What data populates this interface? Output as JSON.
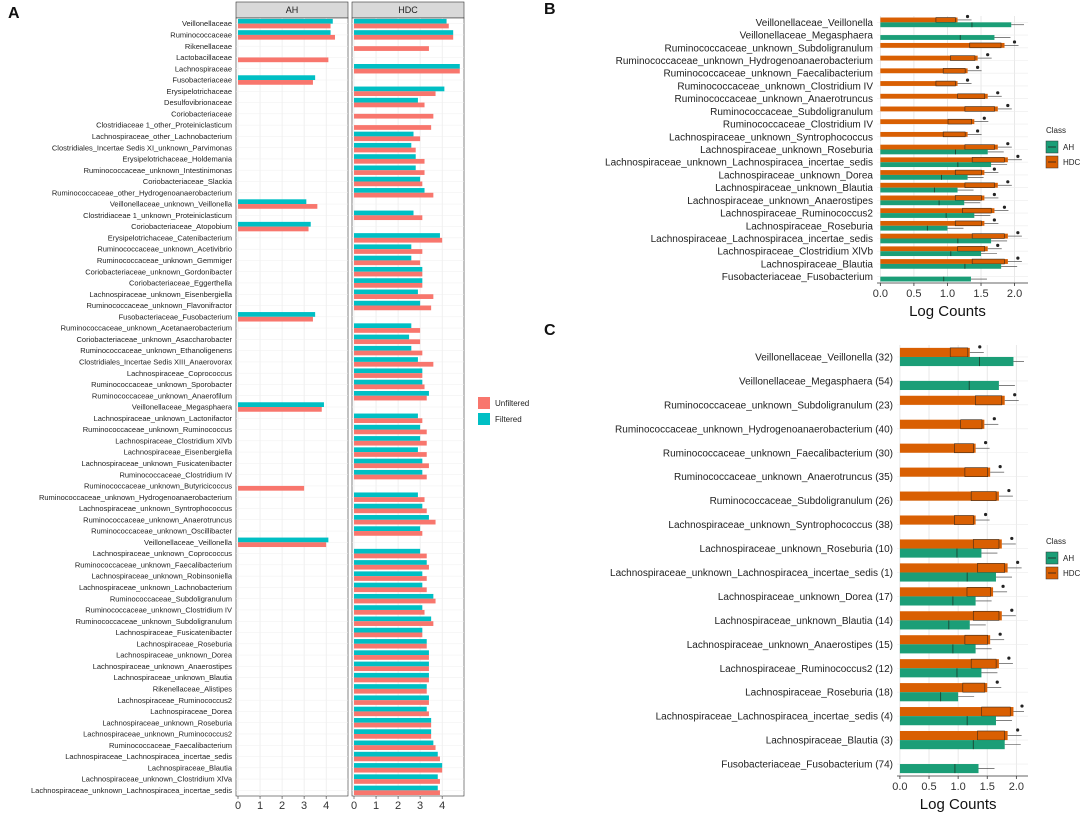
{
  "colors": {
    "unfiltered": "#F8766D",
    "filtered": "#00BFC4",
    "AH": "#1B9E77",
    "HDC": "#D95F02",
    "highlight_blue": "#1f1fa8",
    "highlight_green": "#2e7d32"
  },
  "chart_data": [
    {
      "panel": "A",
      "type": "bar",
      "facets": [
        "AH",
        "HDC"
      ],
      "xlim": [
        0,
        4.9
      ],
      "xticks": [
        "0",
        "1",
        "2",
        "3",
        "4"
      ],
      "legend": {
        "title": "",
        "entries": [
          "Unfiltered",
          "Filtered"
        ],
        "position": "right"
      },
      "highlighted": [
        "Lactobacillaceae",
        "Coriobacteriaceae",
        "Clostridiaceae 1_other_Proteiniclasticum",
        "Ruminococcaceae_unknown_Butyricicoccus"
      ],
      "categories": [
        "Veillonellaceae",
        "Ruminococcaceae",
        "Rikenellaceae",
        "Lactobacillaceae",
        "Lachnospiraceae",
        "Fusobacteriaceae",
        "Erysipelotrichaceae",
        "Desulfovibrionaceae",
        "Coriobacteriaceae",
        "Clostridiaceae 1_other_Proteiniclasticum",
        "Lachnospiraceae_other_Lachnobacterium",
        "Clostridiales_Incertae Sedis XI_unknown_Parvimonas",
        "Erysipelotrichaceae_Holdemania",
        "Ruminococcaceae_unknown_Intestinimonas",
        "Coriobacteriaceae_Slackia",
        "Ruminococcaceae_other_Hydrogenoanaerobacterium",
        "Veillonellaceae_unknown_Veillonella",
        "Clostridiaceae 1_unknown_Proteiniclasticum",
        "Coriobacteriaceae_Atopobium",
        "Erysipelotrichaceae_Catenibacterium",
        "Ruminococcaceae_unknown_Acetivibrio",
        "Ruminococcaceae_unknown_Gemmiger",
        "Coriobacteriaceae_unknown_Gordonibacter",
        "Coriobacteriaceae_Eggerthella",
        "Lachnospiraceae_unknown_Eisenbergiella",
        "Ruminococcaceae_unknown_Flavonifractor",
        "Fusobacteriaceae_Fusobacterium",
        "Ruminococcaceae_unknown_Acetanaerobacterium",
        "Coriobacteriaceae_unknown_Asaccharobacter",
        "Ruminococcaceae_unknown_Ethanoligenens",
        "Clostridiales_Incertae Sedis XIII_Anaerovorax",
        "Lachnospiraceae_Coprococcus",
        "Ruminococcaceae_unknown_Sporobacter",
        "Ruminococcaceae_unknown_Anaerofilum",
        "Veillonellaceae_Megasphaera",
        "Lachnospiraceae_unknown_Lactonifactor",
        "Ruminococcaceae_unknown_Ruminococcus",
        "Lachnospiraceae_Clostridium XlVb",
        "Lachnospiraceae_Eisenbergiella",
        "Lachnospiraceae_unknown_Fusicatenibacter",
        "Ruminococcaceae_Clostridium IV",
        "Ruminococcaceae_unknown_Butyricicoccus",
        "Ruminococcaceae_unknown_Hydrogenoanaerobacterium",
        "Lachnospiraceae_unknown_Syntrophococcus",
        "Ruminococcaceae_unknown_Anaerotruncus",
        "Ruminococcaceae_unknown_Oscillibacter",
        "Veillonellaceae_Veillonella",
        "Lachnospiraceae_unknown_Coprococcus",
        "Ruminococcaceae_unknown_Faecalibacterium",
        "Lachnospiraceae_unknown_Robinsoniella",
        "Lachnospiraceae_unknown_Lachnobacterium",
        "Ruminococcaceae_Subdoligranulum",
        "Ruminococcaceae_unknown_Clostridium IV",
        "Ruminococcaceae_unknown_Subdoligranulum",
        "Lachnospiraceae_Fusicatenibacter",
        "Lachnospiraceae_Roseburia",
        "Lachnospiraceae_unknown_Dorea",
        "Lachnospiraceae_unknown_Anaerostipes",
        "Lachnospiraceae_unknown_Blautia",
        "Rikenellaceae_Alistipes",
        "Lachnospiraceae_Ruminococcus2",
        "Lachnospiraceae_Dorea",
        "Lachnospiraceae_unknown_Roseburia",
        "Lachnospiraceae_unknown_Ruminococcus2",
        "Ruminococcaceae_Faecalibacterium",
        "Lachnospiraceae_Lachnospiracea_incertae_sedis",
        "Lachnospiraceae_Blautia",
        "Lachnospiraceae_unknown_Clostridium XlVa",
        "Lachnospiraceae_unknown_Lachnospiracea_incertae_sedis"
      ],
      "series": [
        {
          "name": "AH_Unfiltered",
          "values": [
            4.2,
            4.4,
            0,
            4.1,
            0,
            3.4,
            0,
            0,
            0,
            0,
            0,
            0,
            0,
            0,
            0,
            0,
            3.6,
            0,
            3.2,
            0,
            0,
            0,
            0,
            0,
            0,
            0,
            3.4,
            0,
            0,
            0,
            0,
            0,
            0,
            0,
            3.8,
            0,
            0,
            0,
            0,
            0,
            0,
            3.0,
            0,
            0,
            0,
            0,
            4.0,
            0,
            0,
            0,
            0,
            0,
            0,
            0,
            0,
            0,
            0,
            0,
            0,
            0,
            0,
            0,
            0,
            0,
            0,
            0,
            0,
            0,
            0
          ]
        },
        {
          "name": "AH_Filtered",
          "values": [
            4.3,
            4.2,
            0,
            0,
            0,
            3.5,
            0,
            0,
            0,
            0,
            0,
            0,
            0,
            0,
            0,
            0,
            3.1,
            0,
            3.3,
            0,
            0,
            0,
            0,
            0,
            0,
            0,
            3.5,
            0,
            0,
            0,
            0,
            0,
            0,
            0,
            3.9,
            0,
            0,
            0,
            0,
            0,
            0,
            0,
            0,
            0,
            0,
            0,
            4.1,
            0,
            0,
            0,
            0,
            0,
            0,
            0,
            0,
            0,
            0,
            0,
            0,
            0,
            0,
            0,
            0,
            0,
            0,
            0,
            0,
            0,
            0
          ]
        },
        {
          "name": "HDC_Unfiltered",
          "values": [
            4.3,
            4.5,
            3.4,
            0,
            4.8,
            0,
            3.7,
            3.2,
            3.6,
            3.5,
            3.0,
            2.8,
            3.2,
            3.2,
            3.1,
            3.6,
            0,
            3.1,
            0,
            4.0,
            3.1,
            3.0,
            3.1,
            3.1,
            3.6,
            3.5,
            0,
            3.0,
            3.0,
            3.1,
            3.6,
            3.1,
            3.2,
            3.3,
            0,
            3.1,
            3.3,
            3.3,
            3.3,
            3.4,
            3.3,
            0,
            3.2,
            3.3,
            3.7,
            3.1,
            0,
            3.3,
            3.4,
            3.3,
            3.3,
            3.7,
            3.2,
            3.6,
            3.1,
            3.3,
            3.4,
            3.4,
            3.4,
            3.3,
            3.4,
            3.4,
            3.5,
            3.5,
            3.7,
            3.9,
            4.0,
            3.9,
            3.9
          ]
        },
        {
          "name": "HDC_Filtered",
          "values": [
            4.2,
            4.5,
            0,
            0,
            4.8,
            0,
            4.1,
            2.9,
            0,
            0,
            2.7,
            2.6,
            2.8,
            2.8,
            3.0,
            3.2,
            0,
            2.7,
            0,
            3.9,
            2.6,
            2.6,
            3.1,
            3.1,
            2.9,
            3.0,
            0,
            2.6,
            2.5,
            2.6,
            2.9,
            3.1,
            3.1,
            3.4,
            0,
            2.9,
            3.0,
            3.0,
            2.9,
            3.1,
            3.1,
            0,
            2.9,
            3.1,
            3.4,
            3.0,
            0,
            3.0,
            3.3,
            3.1,
            3.1,
            3.6,
            3.1,
            3.5,
            3.1,
            3.3,
            3.4,
            3.4,
            3.4,
            3.3,
            3.4,
            3.3,
            3.5,
            3.5,
            3.6,
            3.8,
            4.0,
            3.8,
            3.8
          ]
        }
      ]
    },
    {
      "panel": "B",
      "type": "bar",
      "title": "",
      "xlabel": "Log Counts",
      "xlim": [
        -0.05,
        2.2
      ],
      "xticks": [
        "0.0",
        "0.5",
        "1.0",
        "1.5",
        "2.0"
      ],
      "legend": {
        "title": "Class",
        "entries": [
          "AH",
          "HDC"
        ],
        "position": "right"
      },
      "highlighted": [
        "Lachnospiraceae_unknown_Anaerostipes"
      ],
      "categories": [
        "Veillonellaceae_Veillonella",
        "Veillonellaceae_Megasphaera",
        "Ruminococcaceae_unknown_Subdoligranulum",
        "Ruminococcaceae_unknown_Hydrogenoanaerobacterium",
        "Ruminococcaceae_unknown_Faecalibacterium",
        "Ruminococcaceae_unknown_Clostridium IV",
        "Ruminococcaceae_unknown_Anaerotruncus",
        "Ruminococcaceae_Subdoligranulum",
        "Ruminococcaceae_Clostridium IV",
        "Lachnospiraceae_unknown_Syntrophococcus",
        "Lachnospiraceae_unknown_Roseburia",
        "Lachnospiraceae_unknown_Lachnospiracea_incertae_sedis",
        "Lachnospiraceae_unknown_Dorea",
        "Lachnospiraceae_unknown_Blautia",
        "Lachnospiraceae_unknown_Anaerostipes",
        "Lachnospiraceae_Ruminococcus2",
        "Lachnospiraceae_Roseburia",
        "Lachnospiraceae_Lachnospiracea_incertae_sedis",
        "Lachnospiraceae_Clostridium XlVb",
        "Lachnospiraceae_Blautia",
        "Fusobacteriaceae_Fusobacterium"
      ],
      "series": [
        {
          "name": "HDC",
          "values": [
            1.15,
            0,
            1.85,
            1.45,
            1.3,
            1.15,
            1.6,
            1.75,
            1.4,
            1.3,
            1.75,
            1.9,
            1.55,
            1.75,
            1.55,
            1.7,
            1.55,
            1.9,
            1.6,
            1.9,
            0
          ]
        },
        {
          "name": "AH",
          "values": [
            1.95,
            1.7,
            0,
            0,
            0,
            0,
            0,
            0,
            0,
            0,
            1.6,
            1.65,
            1.3,
            1.15,
            1.25,
            1.4,
            1.0,
            1.65,
            1.5,
            1.8,
            1.35
          ]
        }
      ]
    },
    {
      "panel": "C",
      "type": "bar",
      "xlabel": "Log Counts",
      "xlim": [
        -0.05,
        2.2
      ],
      "xticks": [
        "0.0",
        "0.5",
        "1.0",
        "1.5",
        "2.0"
      ],
      "legend": {
        "title": "Class",
        "entries": [
          "AH",
          "HDC"
        ],
        "position": "right"
      },
      "highlighted_blue": [
        "Lachnospiraceae_unknown_Anaerostipes (15)"
      ],
      "highlighted_green": [
        "Fusobacteriaceae_Fusobacterium (74)"
      ],
      "categories": [
        "Veillonellaceae_Veillonella (32)",
        "Veillonellaceae_Megasphaera (54)",
        "Ruminococcaceae_unknown_Subdoligranulum (23)",
        "Ruminococcaceae_unknown_Hydrogenoanaerobacterium (40)",
        "Ruminococcaceae_unknown_Faecalibacterium (30)",
        "Ruminococcaceae_unknown_Anaerotruncus (35)",
        "Ruminococcaceae_Subdoligranulum (26)",
        "Lachnospiraceae_unknown_Syntrophococcus (38)",
        "Lachnospiraceae_unknown_Roseburia (10)",
        "Lachnospiraceae_unknown_Lachnospiracea_incertae_sedis (1)",
        "Lachnospiraceae_unknown_Dorea (17)",
        "Lachnospiraceae_unknown_Blautia (14)",
        "Lachnospiraceae_unknown_Anaerostipes (15)",
        "Lachnospiraceae_Ruminococcus2 (12)",
        "Lachnospiraceae_Roseburia (18)",
        "Lachnospiraceae_Lachnospiracea_incertae_sedis (4)",
        "Lachnospiraceae_Blautia (3)",
        "Fusobacteriaceae_Fusobacterium (74)"
      ],
      "series": [
        {
          "name": "HDC",
          "values": [
            1.2,
            0,
            1.8,
            1.45,
            1.3,
            1.55,
            1.7,
            1.3,
            1.75,
            1.85,
            1.6,
            1.75,
            1.55,
            1.7,
            1.5,
            1.95,
            1.85,
            0
          ]
        },
        {
          "name": "AH",
          "values": [
            1.95,
            1.7,
            0,
            0,
            0,
            0,
            0,
            0,
            1.4,
            1.65,
            1.3,
            1.2,
            1.3,
            1.4,
            1.0,
            1.65,
            1.8,
            1.35
          ]
        }
      ]
    }
  ]
}
